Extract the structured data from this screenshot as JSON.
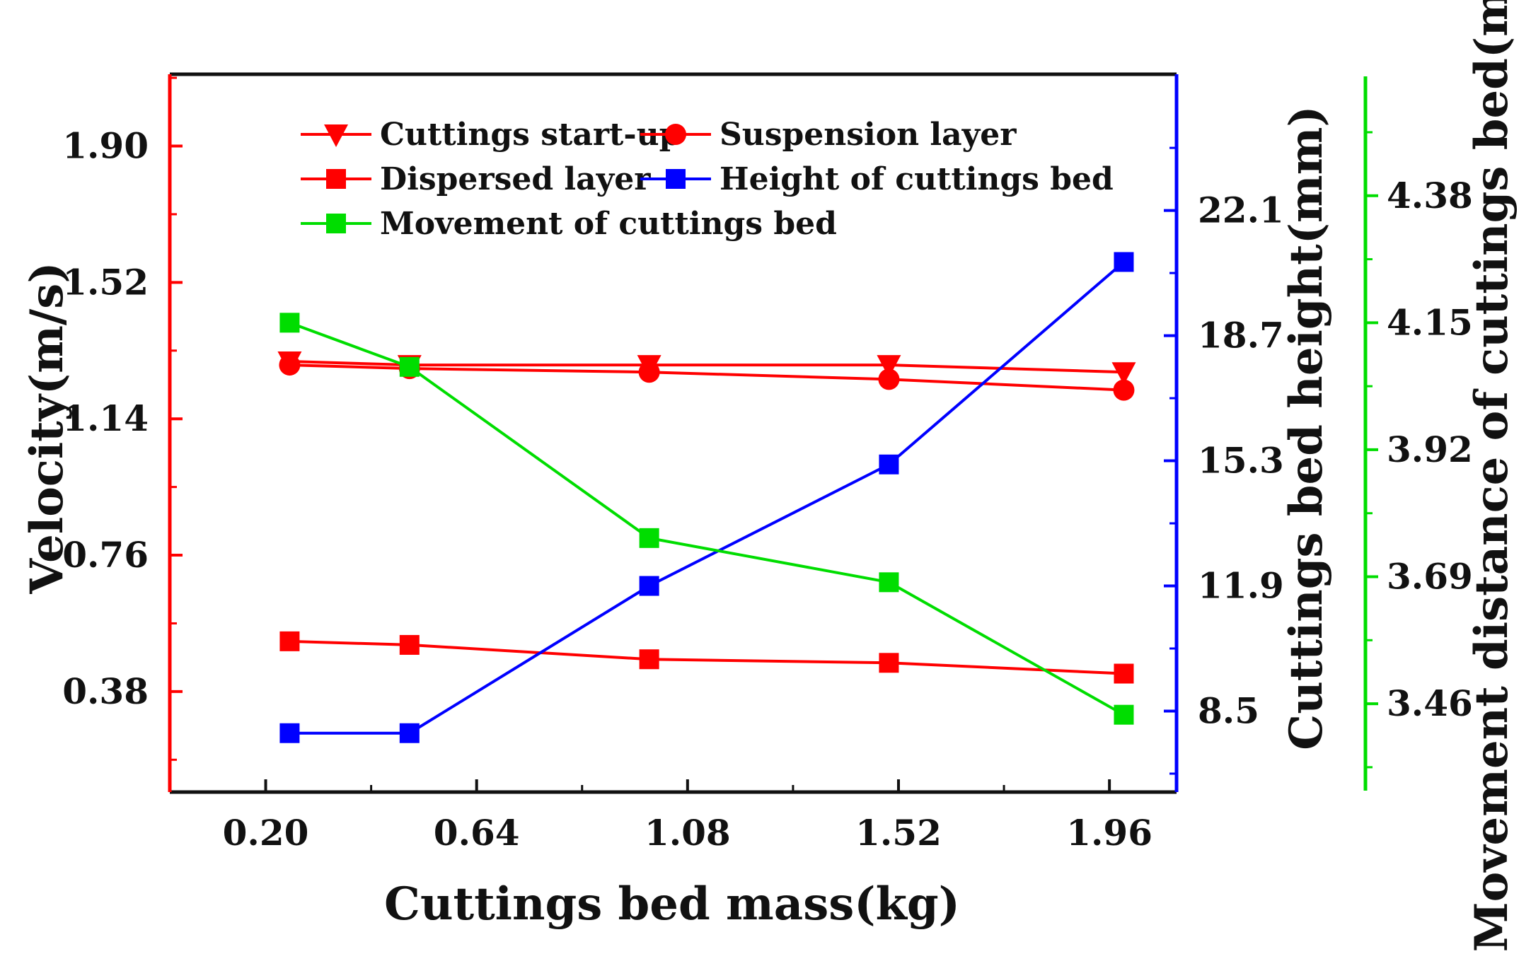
{
  "chart_data": {
    "type": "line",
    "xlabel": "Cuttings bed mass(kg)",
    "x": [
      0.25,
      0.5,
      1.0,
      1.5,
      1.99
    ],
    "xlim": [
      0.0,
      2.1
    ],
    "x_ticks": [
      "0.20",
      "0.64",
      "1.08",
      "1.52",
      "1.96"
    ],
    "axes": {
      "velocity": {
        "label": "Velocity(m/s)",
        "color": "#ff0000",
        "ylim": [
          0.1,
          2.1
        ],
        "ticks": [
          "0.38",
          "0.76",
          "1.14",
          "1.52",
          "1.90"
        ]
      },
      "height": {
        "label": "Cuttings bed height(mm)",
        "color": "#0000ff",
        "ylim": [
          6.3,
          25.8
        ],
        "ticks": [
          "8.5",
          "11.9",
          "15.3",
          "18.7",
          "22.1"
        ]
      },
      "movement": {
        "label": "Movement distance of cuttings bed(m)",
        "color": "#00dd00",
        "ylim": [
          3.3,
          4.6
        ],
        "ticks": [
          "3.46",
          "3.69",
          "3.92",
          "4.15",
          "4.38"
        ]
      }
    },
    "series": [
      {
        "name": "Cuttings start-up",
        "axis": "velocity",
        "color": "#ff0000",
        "marker": "triangle-down",
        "values": [
          1.3,
          1.29,
          1.29,
          1.29,
          1.27
        ]
      },
      {
        "name": "Suspension layer",
        "axis": "velocity",
        "color": "#ff0000",
        "marker": "circle",
        "values": [
          1.29,
          1.28,
          1.27,
          1.25,
          1.22
        ]
      },
      {
        "name": "Dispersed layer",
        "axis": "velocity",
        "color": "#ff0000",
        "marker": "square",
        "values": [
          0.52,
          0.51,
          0.47,
          0.46,
          0.43
        ]
      },
      {
        "name": "Height of cuttings bed",
        "axis": "height",
        "color": "#0000ff",
        "marker": "square",
        "values": [
          7.9,
          7.9,
          11.9,
          15.2,
          20.7
        ]
      },
      {
        "name": "Movement of cuttings bed",
        "axis": "movement",
        "color": "#00dd00",
        "marker": "square",
        "values": [
          4.15,
          4.07,
          3.76,
          3.68,
          3.44
        ]
      }
    ],
    "legend_position": "top-left"
  }
}
